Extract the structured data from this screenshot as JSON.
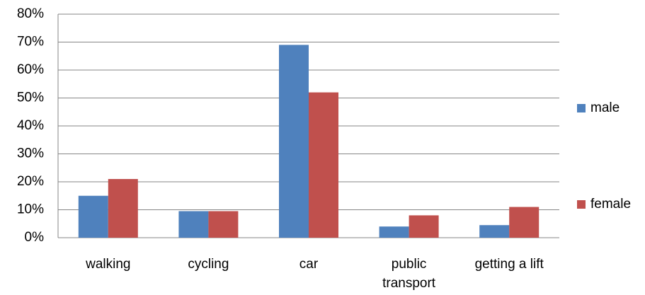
{
  "chart_data": {
    "type": "bar",
    "categories": [
      "walking",
      "cycling",
      "car",
      "public transport",
      "getting a lift"
    ],
    "series": [
      {
        "name": "male",
        "color": "#4f81bd",
        "values": [
          15,
          9.5,
          69,
          4,
          4.5
        ]
      },
      {
        "name": "female",
        "color": "#c0504d",
        "values": [
          21,
          9.5,
          52,
          8,
          11
        ]
      }
    ],
    "ylim": [
      0,
      80
    ],
    "yticks": [
      {
        "value": 0,
        "label": "0%"
      },
      {
        "value": 10,
        "label": "10%"
      },
      {
        "value": 20,
        "label": "20%"
      },
      {
        "value": 30,
        "label": "30%"
      },
      {
        "value": 40,
        "label": "40%"
      },
      {
        "value": 50,
        "label": "50%"
      },
      {
        "value": 60,
        "label": "60%"
      },
      {
        "value": 70,
        "label": "70%"
      },
      {
        "value": 80,
        "label": "80%"
      }
    ],
    "grid": true,
    "legend": "right"
  }
}
